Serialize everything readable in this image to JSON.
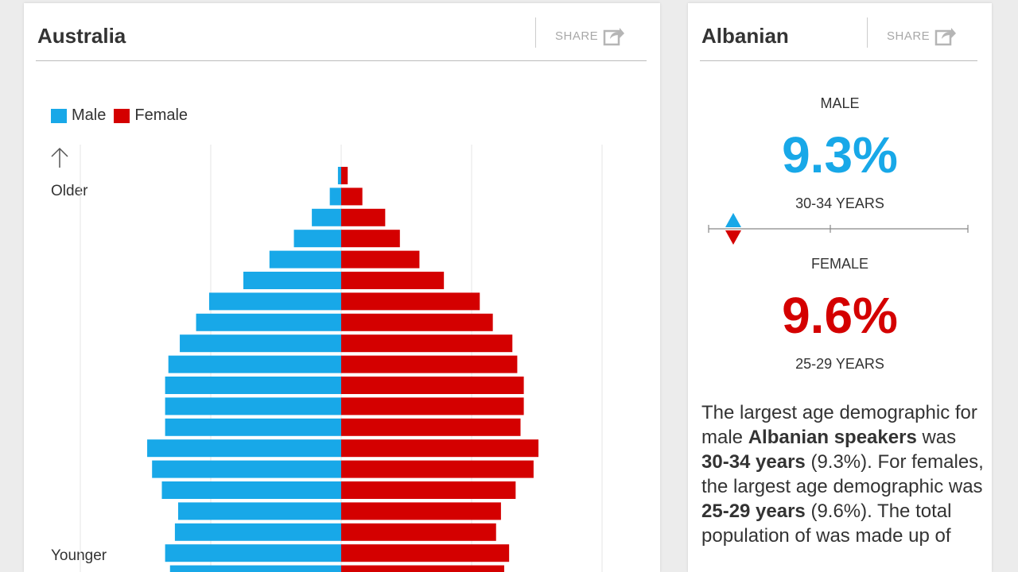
{
  "left_card": {
    "title": "Australia",
    "share_label": "SHARE"
  },
  "right_card": {
    "title": "Albanian",
    "share_label": "SHARE",
    "male": {
      "title": "MALE",
      "value": "9.3%",
      "age": "30-34 YEARS"
    },
    "female": {
      "title": "FEMALE",
      "value": "9.6%",
      "age": "25-29 YEARS"
    },
    "description": {
      "t1": "The largest age demographic for male ",
      "b1": "Albanian speakers",
      "t2": " was ",
      "b2": "30-34 years",
      "t3": " (9.3%). For females, the largest age demographic was ",
      "b3": "25-29 years",
      "t4": " (9.6%). The total population of was made up of"
    }
  },
  "colors": {
    "male": "#18a8e8",
    "female": "#d40000"
  },
  "chart_data": {
    "type": "bar",
    "orientation": "horizontal-pyramid",
    "legend": [
      "Male",
      "Female"
    ],
    "legend_position": "top-left",
    "y_axis_labels": {
      "top": "Older",
      "bottom": "Younger"
    },
    "grid": true,
    "xlim": [
      -10,
      10
    ],
    "series": [
      {
        "name": "Male",
        "values": [
          0.2,
          0.7,
          1.8,
          2.9,
          4.4,
          6.0,
          8.1,
          8.9,
          9.9,
          10.6,
          10.8,
          10.8,
          10.8,
          11.9,
          11.6,
          11.0,
          10.0,
          10.2,
          10.8,
          10.5
        ]
      },
      {
        "name": "Female",
        "values": [
          0.4,
          1.3,
          2.7,
          3.6,
          4.8,
          6.3,
          8.5,
          9.3,
          10.5,
          10.8,
          11.2,
          11.2,
          11.0,
          12.1,
          11.8,
          10.7,
          9.8,
          9.5,
          10.3,
          10.0
        ]
      }
    ]
  }
}
